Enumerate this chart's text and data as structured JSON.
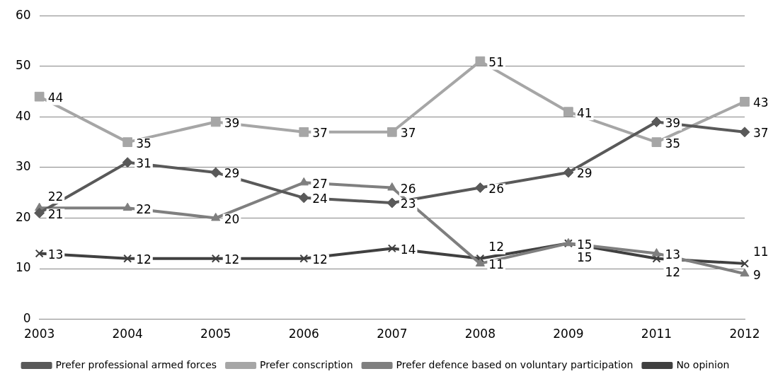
{
  "chart_data": {
    "type": "line",
    "categories": [
      "2003",
      "2004",
      "2005",
      "2006",
      "2007",
      "2008",
      "2009",
      "2011",
      "2012"
    ],
    "series": [
      {
        "name": "Prefer professional armed forces",
        "color": "#595959",
        "marker": "diamond",
        "values": [
          21,
          31,
          29,
          24,
          23,
          26,
          29,
          39,
          37
        ]
      },
      {
        "name": "Prefer conscription",
        "color": "#a6a6a6",
        "marker": "square",
        "values": [
          44,
          35,
          39,
          37,
          37,
          51,
          41,
          35,
          43
        ]
      },
      {
        "name": "Prefer defence based on voluntary participation",
        "color": "#7f7f7f",
        "marker": "triangle",
        "values": [
          22,
          22,
          20,
          27,
          26,
          11,
          15,
          13,
          9
        ]
      },
      {
        "name": "No opinion",
        "color": "#404040",
        "marker": "cross",
        "values": [
          13,
          12,
          12,
          12,
          14,
          12,
          15,
          12,
          11
        ]
      }
    ],
    "ylim": [
      0,
      60
    ],
    "yticks": [
      0,
      10,
      20,
      30,
      40,
      50,
      60
    ],
    "grid": "y",
    "legend": "bottom",
    "data_labels": true,
    "line_style": "solid"
  }
}
